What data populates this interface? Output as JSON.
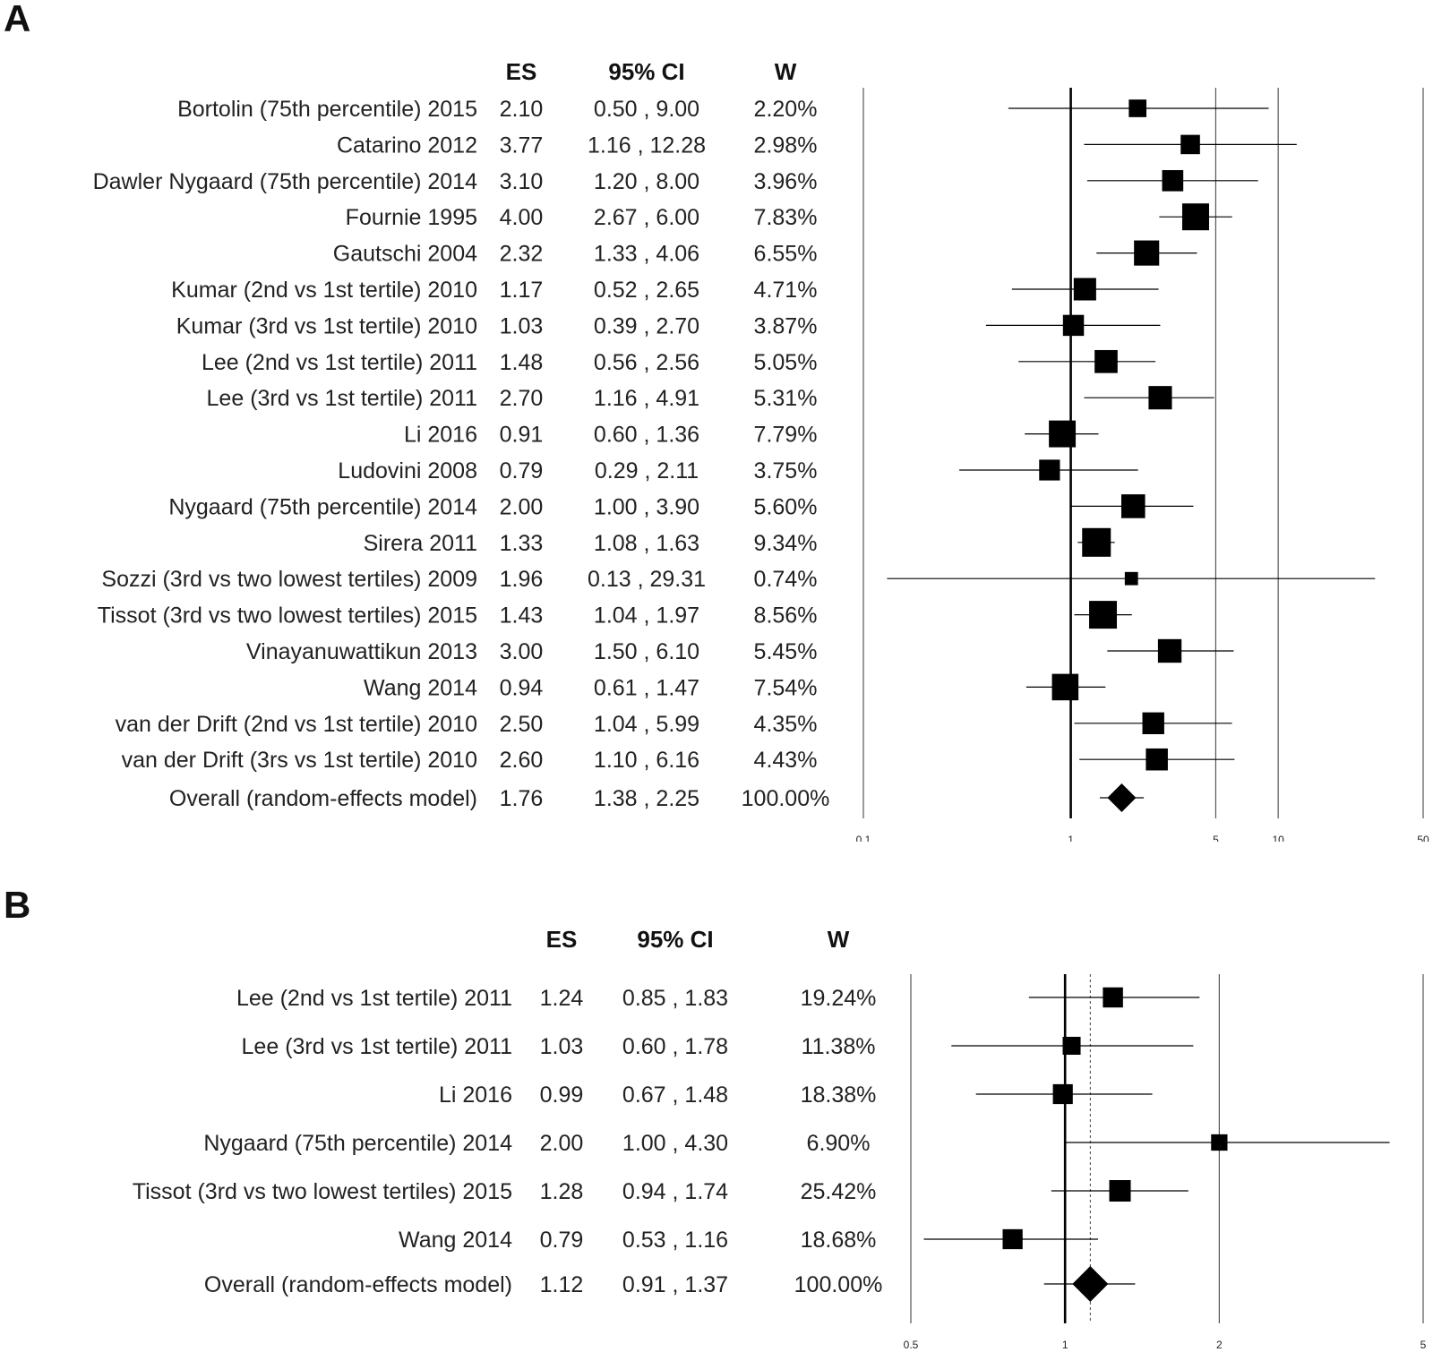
{
  "chart_data": [
    {
      "panel": "A",
      "type": "forest",
      "headers": {
        "es": "ES",
        "ci": "95% CI",
        "w": "W"
      },
      "x_scale": "log",
      "xlim": [
        0.1,
        50
      ],
      "x_ticks": [
        0.1,
        1,
        5,
        10,
        50
      ],
      "x_tick_labels": [
        "0.1",
        "1",
        "5",
        "10",
        "50"
      ],
      "reference_lines": [
        1,
        5,
        10
      ],
      "studies": [
        {
          "label": "Bortolin (75th percentile) 2015",
          "es": 2.1,
          "lower": 0.5,
          "upper": 9.0,
          "es_text": "2.10",
          "ci_text": "0.50 , 9.00",
          "w_text": "2.20%",
          "weight": 2.2
        },
        {
          "label": "Catarino 2012",
          "es": 3.77,
          "lower": 1.16,
          "upper": 12.28,
          "es_text": "3.77",
          "ci_text": "1.16 , 12.28",
          "w_text": "2.98%",
          "weight": 2.98
        },
        {
          "label": "Dawler Nygaard (75th percentile) 2014",
          "es": 3.1,
          "lower": 1.2,
          "upper": 8.0,
          "es_text": "3.10",
          "ci_text": "1.20 , 8.00",
          "w_text": "3.96%",
          "weight": 3.96
        },
        {
          "label": "Fournie 1995",
          "es": 4.0,
          "lower": 2.67,
          "upper": 6.0,
          "es_text": "4.00",
          "ci_text": "2.67 , 6.00",
          "w_text": "7.83%",
          "weight": 7.83
        },
        {
          "label": "Gautschi 2004",
          "es": 2.32,
          "lower": 1.33,
          "upper": 4.06,
          "es_text": "2.32",
          "ci_text": "1.33 , 4.06",
          "w_text": "6.55%",
          "weight": 6.55
        },
        {
          "label": "Kumar (2nd vs 1st tertile) 2010",
          "es": 1.17,
          "lower": 0.52,
          "upper": 2.65,
          "es_text": "1.17",
          "ci_text": "0.52 , 2.65",
          "w_text": "4.71%",
          "weight": 4.71
        },
        {
          "label": "Kumar (3rd vs 1st tertile) 2010",
          "es": 1.03,
          "lower": 0.39,
          "upper": 2.7,
          "es_text": "1.03",
          "ci_text": "0.39 , 2.70",
          "w_text": "3.87%",
          "weight": 3.87
        },
        {
          "label": "Lee (2nd vs 1st tertile) 2011",
          "es": 1.48,
          "lower": 0.56,
          "upper": 2.56,
          "es_text": "1.48",
          "ci_text": "0.56 , 2.56",
          "w_text": "5.05%",
          "weight": 5.05
        },
        {
          "label": "Lee (3rd vs 1st tertile) 2011",
          "es": 2.7,
          "lower": 1.16,
          "upper": 4.91,
          "es_text": "2.70",
          "ci_text": "1.16 , 4.91",
          "w_text": "5.31%",
          "weight": 5.31
        },
        {
          "label": "Li 2016",
          "es": 0.91,
          "lower": 0.6,
          "upper": 1.36,
          "es_text": "0.91",
          "ci_text": "0.60 , 1.36",
          "w_text": "7.79%",
          "weight": 7.79
        },
        {
          "label": "Ludovini 2008",
          "es": 0.79,
          "lower": 0.29,
          "upper": 2.11,
          "es_text": "0.79",
          "ci_text": "0.29 , 2.11",
          "w_text": "3.75%",
          "weight": 3.75
        },
        {
          "label": "Nygaard (75th percentile) 2014",
          "es": 2.0,
          "lower": 1.0,
          "upper": 3.9,
          "es_text": "2.00",
          "ci_text": "1.00 , 3.90",
          "w_text": "5.60%",
          "weight": 5.6
        },
        {
          "label": "Sirera 2011",
          "es": 1.33,
          "lower": 1.08,
          "upper": 1.63,
          "es_text": "1.33",
          "ci_text": "1.08 , 1.63",
          "w_text": "9.34%",
          "weight": 9.34
        },
        {
          "label": "Sozzi (3rd vs two lowest tertiles) 2009",
          "es": 1.96,
          "lower": 0.13,
          "upper": 29.31,
          "es_text": "1.96",
          "ci_text": "0.13 , 29.31",
          "w_text": "0.74%",
          "weight": 0.74
        },
        {
          "label": "Tissot (3rd vs two lowest tertiles) 2015",
          "es": 1.43,
          "lower": 1.04,
          "upper": 1.97,
          "es_text": "1.43",
          "ci_text": "1.04 , 1.97",
          "w_text": "8.56%",
          "weight": 8.56
        },
        {
          "label": "Vinayanuwattikun 2013",
          "es": 3.0,
          "lower": 1.5,
          "upper": 6.1,
          "es_text": "3.00",
          "ci_text": "1.50 , 6.10",
          "w_text": "5.45%",
          "weight": 5.45
        },
        {
          "label": "Wang 2014",
          "es": 0.94,
          "lower": 0.61,
          "upper": 1.47,
          "es_text": "0.94",
          "ci_text": "0.61 , 1.47",
          "w_text": "7.54%",
          "weight": 7.54
        },
        {
          "label": "van der Drift (2nd vs 1st tertile) 2010",
          "es": 2.5,
          "lower": 1.04,
          "upper": 5.99,
          "es_text": "2.50",
          "ci_text": "1.04 , 5.99",
          "w_text": "4.35%",
          "weight": 4.35
        },
        {
          "label": "van der Drift (3rs vs 1st tertile) 2010",
          "es": 2.6,
          "lower": 1.1,
          "upper": 6.16,
          "es_text": "2.60",
          "ci_text": "1.10 , 6.16",
          "w_text": "4.43%",
          "weight": 4.43
        }
      ],
      "overall": {
        "label": "Overall (random-effects model)",
        "es": 1.76,
        "lower": 1.38,
        "upper": 2.25,
        "es_text": "1.76",
        "ci_text": "1.38 , 2.25",
        "w_text": "100.00%"
      }
    },
    {
      "panel": "B",
      "type": "forest",
      "headers": {
        "es": "ES",
        "ci": "95% CI",
        "w": "W"
      },
      "x_scale": "log",
      "xlim": [
        0.5,
        5
      ],
      "x_ticks": [
        0.5,
        1,
        2,
        5
      ],
      "x_tick_labels": [
        "0.5",
        "1",
        "2",
        "5"
      ],
      "reference_lines": [
        1,
        2
      ],
      "dashed_line_at_overall": true,
      "studies": [
        {
          "label": "Lee (2nd vs 1st tertile) 2011",
          "es": 1.24,
          "lower": 0.85,
          "upper": 1.83,
          "es_text": "1.24",
          "ci_text": "0.85 , 1.83",
          "w_text": "19.24%",
          "weight": 19.24
        },
        {
          "label": "Lee (3rd vs 1st tertile) 2011",
          "es": 1.03,
          "lower": 0.6,
          "upper": 1.78,
          "es_text": "1.03",
          "ci_text": "0.60 , 1.78",
          "w_text": "11.38%",
          "weight": 11.38
        },
        {
          "label": "Li 2016",
          "es": 0.99,
          "lower": 0.67,
          "upper": 1.48,
          "es_text": "0.99",
          "ci_text": "0.67 , 1.48",
          "w_text": "18.38%",
          "weight": 18.38
        },
        {
          "label": "Nygaard (75th percentile) 2014",
          "es": 2.0,
          "lower": 1.0,
          "upper": 4.3,
          "es_text": "2.00",
          "ci_text": "1.00 , 4.30",
          "w_text": "6.90%",
          "weight": 6.9
        },
        {
          "label": "Tissot (3rd vs two lowest tertiles) 2015",
          "es": 1.28,
          "lower": 0.94,
          "upper": 1.74,
          "es_text": "1.28",
          "ci_text": "0.94 , 1.74",
          "w_text": "25.42%",
          "weight": 25.42
        },
        {
          "label": "Wang 2014",
          "es": 0.79,
          "lower": 0.53,
          "upper": 1.16,
          "es_text": "0.79",
          "ci_text": "0.53 , 1.16",
          "w_text": "18.68%",
          "weight": 18.68
        }
      ],
      "overall": {
        "label": "Overall (random-effects model)",
        "es": 1.12,
        "lower": 0.91,
        "upper": 1.37,
        "es_text": "1.12",
        "ci_text": "0.91 , 1.37",
        "w_text": "100.00%"
      }
    }
  ],
  "panels": {
    "a_letter": "A",
    "b_letter": "B"
  }
}
